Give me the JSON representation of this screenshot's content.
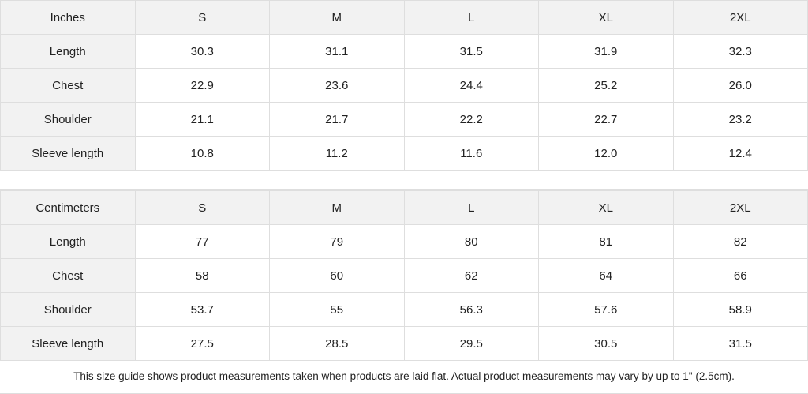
{
  "tables": [
    {
      "header": [
        "Inches",
        "S",
        "M",
        "L",
        "XL",
        "2XL"
      ],
      "rows": [
        [
          "Length",
          "30.3",
          "31.1",
          "31.5",
          "31.9",
          "32.3"
        ],
        [
          "Chest",
          "22.9",
          "23.6",
          "24.4",
          "25.2",
          "26.0"
        ],
        [
          "Shoulder",
          "21.1",
          "21.7",
          "22.2",
          "22.7",
          "23.2"
        ],
        [
          "Sleeve length",
          "10.8",
          "11.2",
          "11.6",
          "12.0",
          "12.4"
        ]
      ]
    },
    {
      "header": [
        "Centimeters",
        "S",
        "M",
        "L",
        "XL",
        "2XL"
      ],
      "rows": [
        [
          "Length",
          "77",
          "79",
          "80",
          "81",
          "82"
        ],
        [
          "Chest",
          "58",
          "60",
          "62",
          "64",
          "66"
        ],
        [
          "Shoulder",
          "53.7",
          "55",
          "56.3",
          "57.6",
          "58.9"
        ],
        [
          "Sleeve length",
          "27.5",
          "28.5",
          "29.5",
          "30.5",
          "31.5"
        ]
      ]
    }
  ],
  "note": "This size guide shows product measurements taken when products are laid flat.  Actual product measurements may vary by up to 1\" (2.5cm).",
  "colors": {
    "header_bg": "#f2f2f2",
    "border": "#dedede",
    "text": "#222222"
  }
}
